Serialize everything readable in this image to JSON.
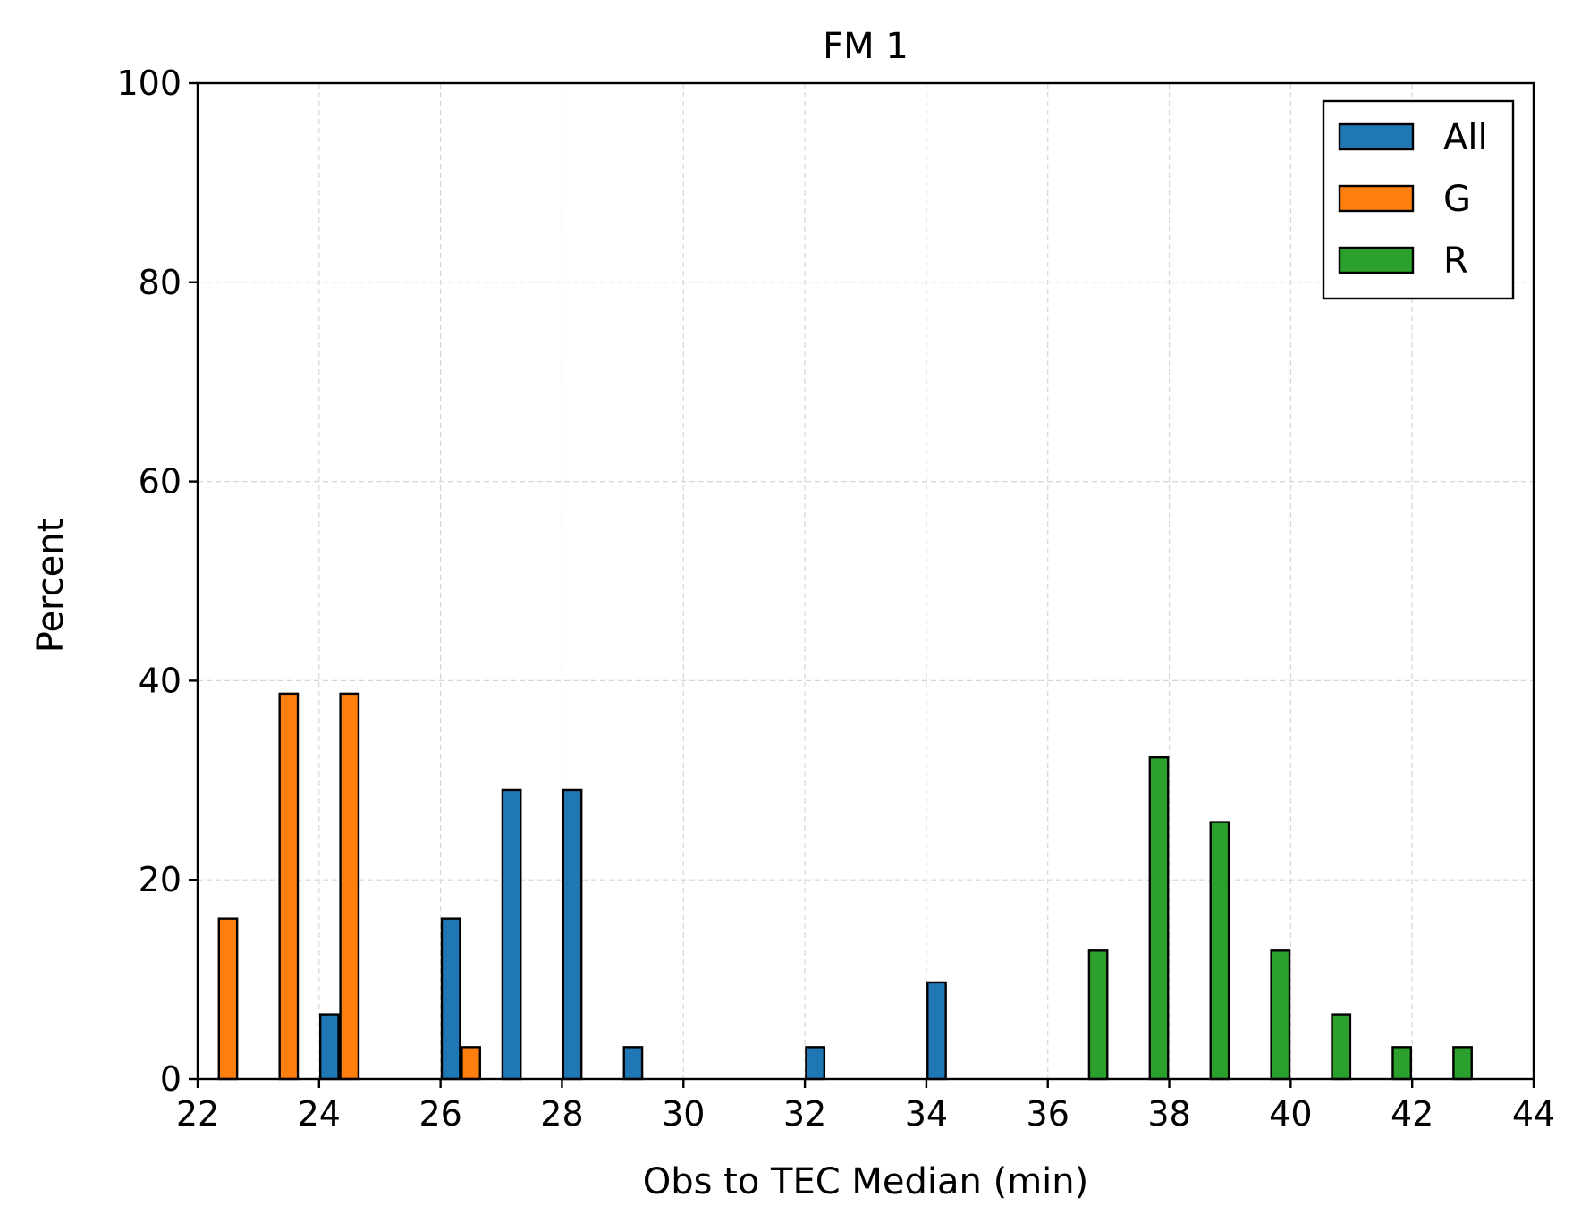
{
  "chart_data": {
    "type": "bar",
    "title": "FM 1",
    "xlabel": "Obs to TEC Median (min)",
    "ylabel": "Percent",
    "xlim": [
      22,
      44
    ],
    "ylim": [
      0,
      100
    ],
    "xticks": [
      "22",
      "24",
      "26",
      "28",
      "30",
      "32",
      "34",
      "36",
      "38",
      "40",
      "42",
      "44"
    ],
    "yticks": [
      "0",
      "20",
      "40",
      "60",
      "80",
      "100"
    ],
    "grid": true,
    "legend_position": "top-right",
    "series": [
      {
        "name": "All",
        "color": "#1f77b4",
        "points": [
          {
            "x": 24.17,
            "y": 6.5
          },
          {
            "x": 26.17,
            "y": 16.1
          },
          {
            "x": 27.17,
            "y": 29.0
          },
          {
            "x": 28.17,
            "y": 29.0
          },
          {
            "x": 29.17,
            "y": 3.2
          },
          {
            "x": 32.17,
            "y": 3.2
          },
          {
            "x": 34.17,
            "y": 9.7
          }
        ]
      },
      {
        "name": "G",
        "color": "#ff7f0e",
        "points": [
          {
            "x": 22.5,
            "y": 16.1
          },
          {
            "x": 23.5,
            "y": 38.7
          },
          {
            "x": 24.5,
            "y": 38.7
          },
          {
            "x": 26.5,
            "y": 3.2
          }
        ]
      },
      {
        "name": "R",
        "color": "#2ca02c",
        "points": [
          {
            "x": 36.83,
            "y": 12.9
          },
          {
            "x": 37.83,
            "y": 32.3
          },
          {
            "x": 38.83,
            "y": 25.8
          },
          {
            "x": 39.83,
            "y": 12.9
          },
          {
            "x": 40.83,
            "y": 6.5
          },
          {
            "x": 41.83,
            "y": 3.2
          },
          {
            "x": 42.83,
            "y": 3.2
          }
        ]
      }
    ]
  }
}
